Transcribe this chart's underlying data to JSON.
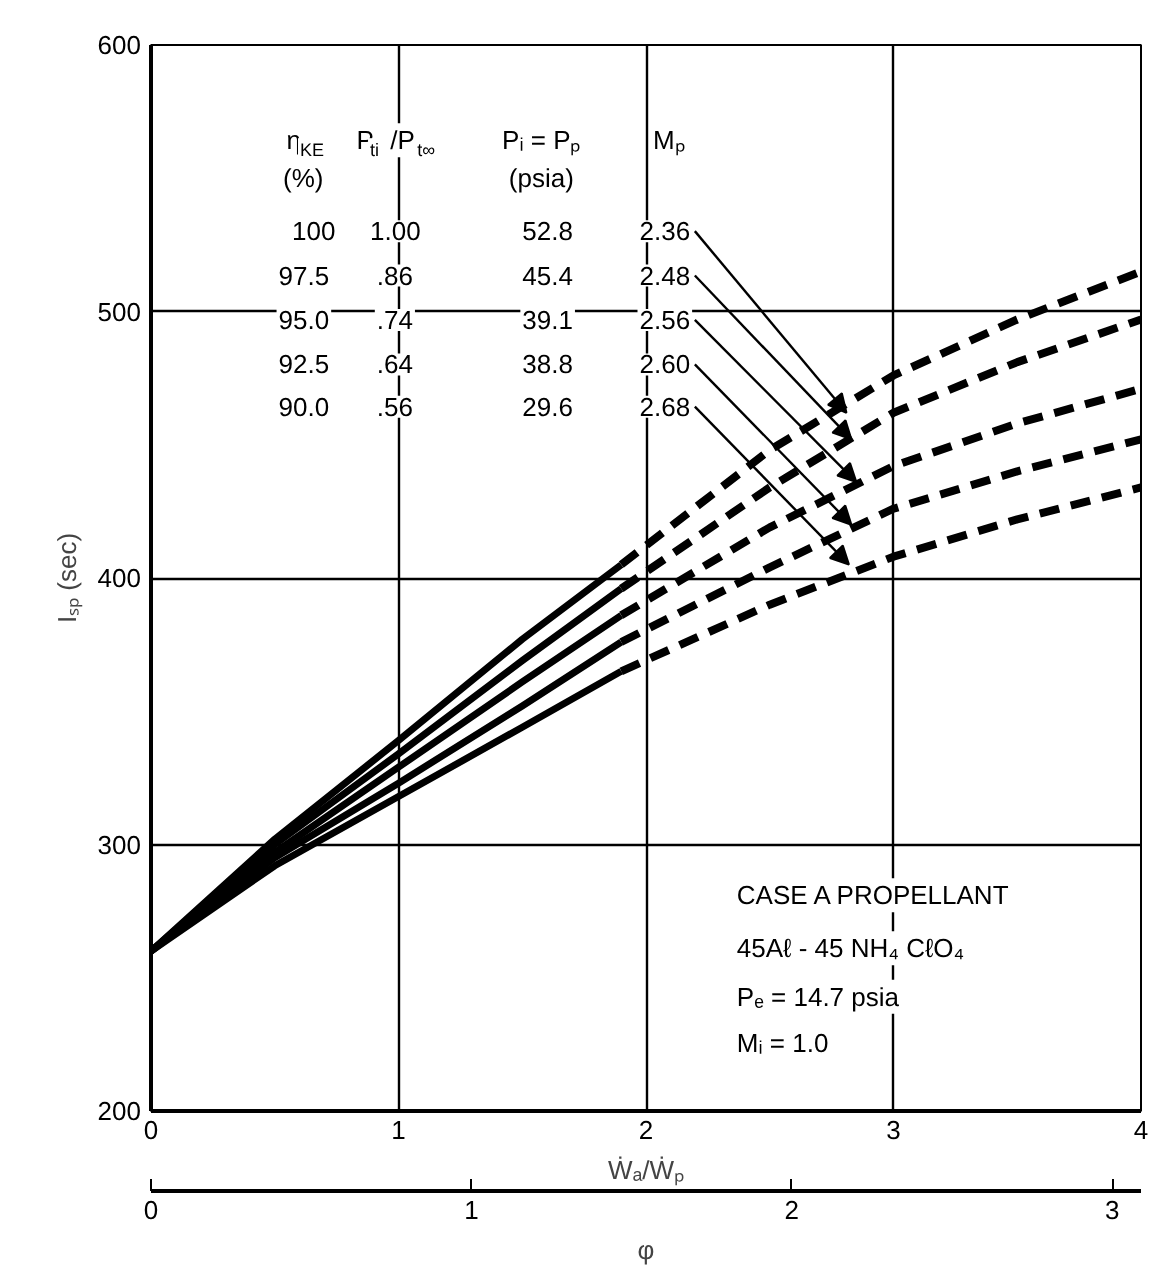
{
  "chart_data": {
    "type": "line",
    "xlabel": "Ẇₐ/Ẇₚ",
    "ylabel": "Iₛₚ (sec)",
    "x2label": "φ",
    "xlim": [
      0,
      4
    ],
    "xticks": [
      0,
      1,
      2,
      3,
      4
    ],
    "ylim": [
      200,
      600
    ],
    "yticks": [
      200,
      300,
      400,
      500,
      600
    ],
    "x2lim": [
      0,
      3.09
    ],
    "x2ticks": [
      0,
      1,
      2,
      3
    ],
    "grid": true,
    "series": [
      {
        "color": "#000000",
        "line_style": "solid",
        "x": [
          0,
          0.5,
          1,
          1.5,
          1.9
        ],
        "values": [
          260,
          302,
          339,
          377,
          405
        ]
      },
      {
        "color": "#000000",
        "line_style": "solid",
        "x": [
          0,
          0.5,
          1,
          1.5,
          1.9
        ],
        "values": [
          260,
          300,
          334,
          369,
          396
        ]
      },
      {
        "color": "#000000",
        "line_style": "solid",
        "x": [
          0,
          0.5,
          1,
          1.5,
          1.9
        ],
        "values": [
          260,
          297,
          329,
          361,
          386
        ]
      },
      {
        "color": "#000000",
        "line_style": "solid",
        "x": [
          0,
          0.5,
          1,
          1.5,
          1.9
        ],
        "values": [
          260,
          295,
          323,
          352,
          376
        ]
      },
      {
        "color": "#000000",
        "line_style": "solid",
        "x": [
          0,
          0.5,
          1,
          1.5,
          1.9
        ],
        "values": [
          260,
          292,
          318,
          344,
          365
        ]
      },
      {
        "color": "#000000",
        "line_style": "dashed",
        "x": [
          1.9,
          2.5,
          3,
          3.5,
          4
        ],
        "values": [
          405,
          448,
          476,
          497,
          515
        ]
      },
      {
        "color": "#000000",
        "line_style": "dashed",
        "x": [
          1.9,
          2.5,
          3,
          3.5,
          4
        ],
        "values": [
          396,
          434,
          462,
          481,
          497
        ]
      },
      {
        "color": "#000000",
        "line_style": "dashed",
        "x": [
          1.9,
          2.5,
          3,
          3.5,
          4
        ],
        "values": [
          386,
          419,
          442,
          458,
          471
        ]
      },
      {
        "color": "#000000",
        "line_style": "dashed",
        "x": [
          1.9,
          2.5,
          3,
          3.5,
          4
        ],
        "values": [
          376,
          404,
          426,
          440,
          452
        ]
      },
      {
        "color": "#000000",
        "line_style": "dashed",
        "x": [
          1.9,
          2.5,
          3,
          3.5,
          4
        ],
        "values": [
          365,
          390,
          408,
          422,
          434
        ]
      }
    ],
    "annotations": [
      "η$_{KE}$",
      "P$_{ti}$/P$_{t∞}$",
      "Pᵢ = Pₚ",
      "Mₚ",
      "(%)",
      "(psia)",
      "100",
      "1.00",
      "52.8",
      {
        "text": "2.36",
        "x": 2.81,
        "y": 462
      },
      "97.5",
      ".86",
      "45.4",
      {
        "text": "2.48",
        "x": 2.83,
        "y": 452
      },
      "95.0",
      ".74",
      "39.1",
      {
        "text": "2.56",
        "x": 2.85,
        "y": 436
      },
      "92.5",
      ".64",
      "38.8",
      {
        "text": "2.60",
        "x": 2.83,
        "y": 420
      },
      "90.0",
      ".56",
      "29.6",
      {
        "text": "2.68",
        "x": 2.82,
        "y": 405
      },
      "CASE A PROPELLANT",
      "45Aℓ - 45 NH₄ CℓO₄",
      "Pₑ = 14.7 psia",
      "Mᵢ = 1.0"
    ]
  }
}
